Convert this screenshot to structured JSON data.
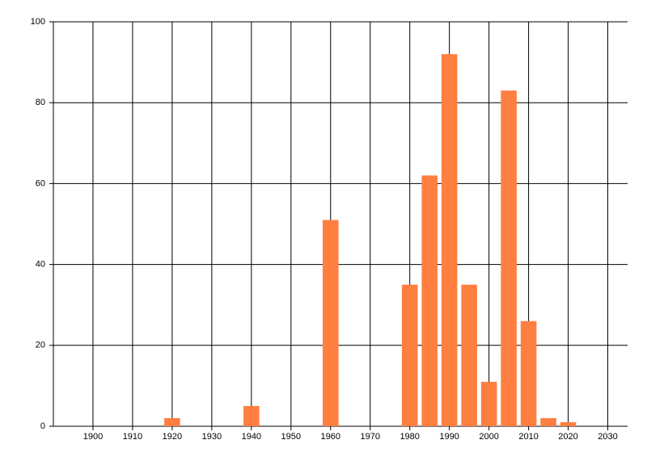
{
  "chart_data": {
    "type": "bar",
    "x": [
      1920,
      1940,
      1960,
      1980,
      1985,
      1990,
      1995,
      2000,
      2005,
      2010,
      2015,
      2020
    ],
    "values": [
      2,
      5,
      51,
      35,
      62,
      92,
      35,
      11,
      83,
      26,
      2,
      1
    ],
    "color": "#ff7f41",
    "xlim": [
      1890,
      2035
    ],
    "xticks": [
      1900,
      1910,
      1920,
      1930,
      1940,
      1950,
      1960,
      1970,
      1980,
      1990,
      2000,
      2010,
      2020,
      2030
    ],
    "ylim": [
      0,
      100
    ],
    "yticks": [
      0,
      20,
      40,
      60,
      80,
      100
    ],
    "grid": true
  }
}
